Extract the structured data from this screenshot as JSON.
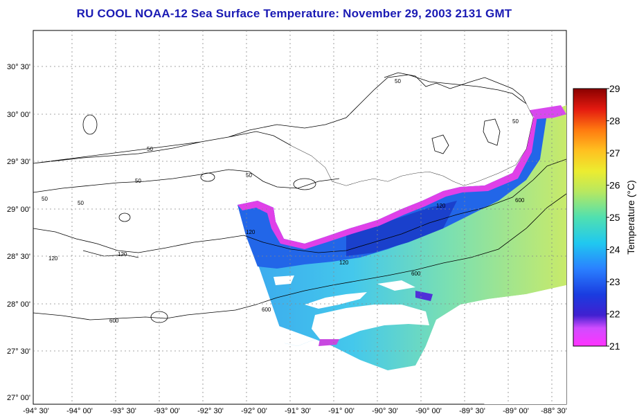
{
  "title": "RU COOL  NOAA-12  Sea Surface Temperature:  November 29, 2003 2131 GMT",
  "lon_labels": [
    "-94° 30'",
    "-94° 00'",
    "-93° 30'",
    "-93° 00'",
    "-92° 30'",
    "-92° 00'",
    "-91° 30'",
    "-91° 00'",
    "-90° 30'",
    "-90° 00'",
    "-89° 30'",
    "-89° 00'",
    "-88° 30'"
  ],
  "lat_labels": [
    "30° 30'",
    "30° 00'",
    "29° 30'",
    "29° 00'",
    "28° 30'",
    "28° 00'",
    "27° 30'",
    "27° 00'"
  ],
  "contour_labels": [
    "50",
    "50",
    "50",
    "50",
    "50",
    "50",
    "50",
    "120",
    "120",
    "120",
    "120",
    "120",
    "600",
    "600",
    "600",
    "600"
  ],
  "colorbar": {
    "label": "Temperature (°C)",
    "ticks": [
      "29",
      "28",
      "27",
      "26",
      "25",
      "24",
      "23",
      "22",
      "21"
    ],
    "range": [
      21,
      29
    ]
  },
  "colors": {
    "title": "#1a1ab4",
    "land": "#ffffff",
    "grid": "#888888"
  }
}
